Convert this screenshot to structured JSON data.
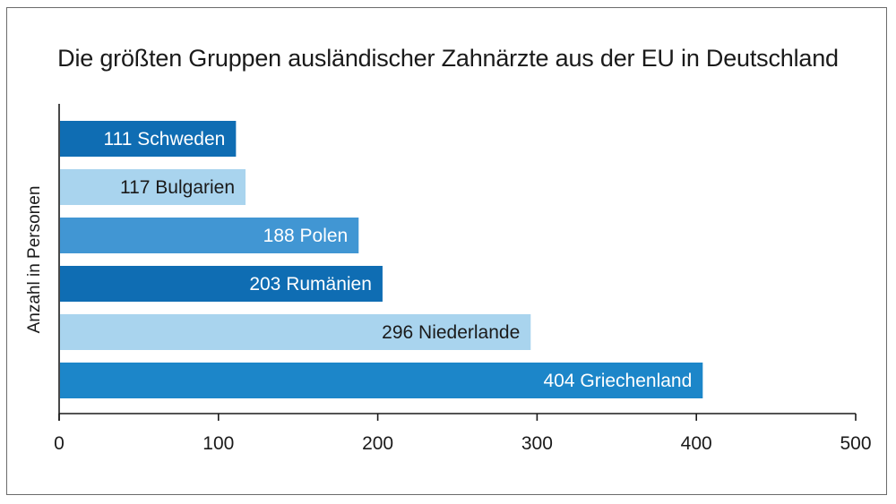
{
  "chart_data": {
    "type": "bar",
    "orientation": "horizontal",
    "title": "Die größten Gruppen ausländischer Zahnärzte aus der EU in Deutschland",
    "ylabel": "Anzahl in Personen",
    "xlabel": "",
    "xlim": [
      0,
      500
    ],
    "xticks": [
      0,
      100,
      200,
      300,
      400,
      500
    ],
    "grid": false,
    "categories": [
      "Schweden",
      "Bulgarien",
      "Polen",
      "Rumänien",
      "Niederlande",
      "Griechenland"
    ],
    "values": [
      111,
      117,
      188,
      203,
      296,
      404
    ],
    "bar_labels": [
      "111 Schweden",
      "117 Bulgarien",
      "188 Polen",
      "203 Rumänien",
      "296 Niederlande",
      "404 Griechenland"
    ],
    "bar_colors": [
      "#0f6db3",
      "#a9d4ee",
      "#4196d3",
      "#0f6db3",
      "#a9d4ee",
      "#1c86c9"
    ],
    "label_colors": [
      "#ffffff",
      "#1a1a1a",
      "#ffffff",
      "#ffffff",
      "#1a1a1a",
      "#ffffff"
    ]
  }
}
